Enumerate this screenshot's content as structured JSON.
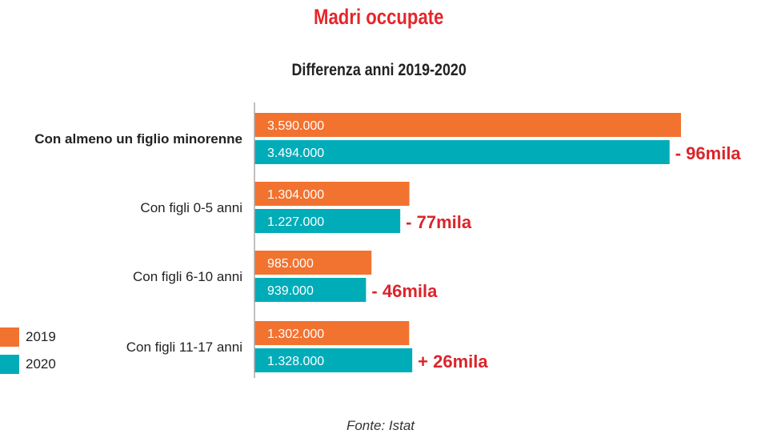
{
  "title": "Madri occupate",
  "subtitle": "Differenza anni 2019-2020",
  "source": "Fonte: Istat",
  "colors": {
    "series_2019": "#f27230",
    "series_2020": "#00acb8",
    "title": "#e5262b",
    "diff": "#d9252b",
    "axis": "#aaaaaa",
    "bar_text": "#ffffff"
  },
  "legend": [
    {
      "label": "2019"
    },
    {
      "label": "2020"
    }
  ],
  "chart_data": {
    "type": "bar",
    "orientation": "horizontal",
    "title": "Madri occupate",
    "subtitle": "Differenza anni 2019-2020",
    "categories": [
      "Con almeno un figlio minorenne",
      "Con figli 0-5 anni",
      "Con figli 6-10 anni",
      "Con figli 11-17 anni"
    ],
    "series": [
      {
        "name": "2019",
        "values": [
          3590000,
          1304000,
          985000,
          1302000
        ],
        "labels": [
          "3.590.000",
          "1.304.000",
          "985.000",
          "1.302.000"
        ]
      },
      {
        "name": "2020",
        "values": [
          3494000,
          1227000,
          939000,
          1328000
        ],
        "labels": [
          "3.494.000",
          "1.227.000",
          "939.000",
          "1.328.000"
        ]
      }
    ],
    "differences": [
      "- 96mila",
      "- 77mila",
      "- 46mila",
      "+ 26mila"
    ],
    "category_emphasis": [
      true,
      false,
      false,
      false
    ],
    "xlim": [
      0,
      3590000
    ],
    "grid": false,
    "legend_position": "bottom-left",
    "xlabel": "",
    "ylabel": ""
  }
}
